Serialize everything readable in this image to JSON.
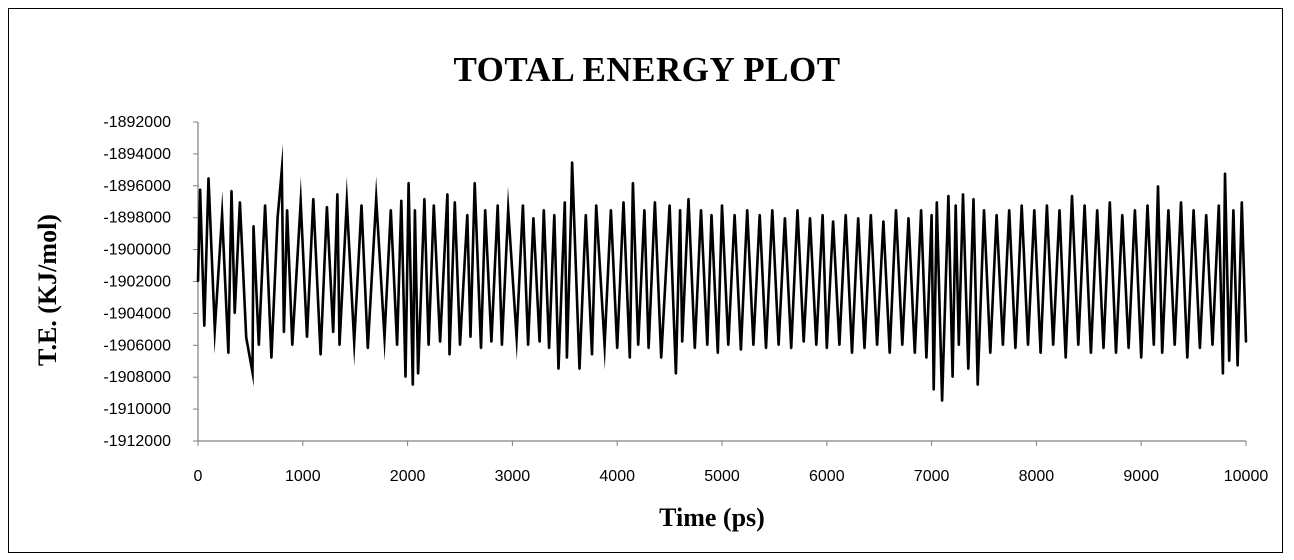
{
  "chart_data": {
    "type": "line",
    "title": "TOTAL ENERGY PLOT",
    "xlabel": "Time (ps)",
    "ylabel": "T.E. (KJ/mol)",
    "xlim": [
      0,
      10000
    ],
    "ylim": [
      -1912000,
      -1892000
    ],
    "x_ticks": [
      0,
      1000,
      2000,
      3000,
      4000,
      5000,
      6000,
      7000,
      8000,
      9000,
      10000
    ],
    "y_ticks": [
      -1892000,
      -1894000,
      -1896000,
      -1898000,
      -1900000,
      -1902000,
      -1904000,
      -1906000,
      -1908000,
      -1910000,
      -1912000
    ],
    "x_tick_labels": [
      "0",
      "1000",
      "2000",
      "3000",
      "4000",
      "5000",
      "6000",
      "7000",
      "8000",
      "9000",
      "10000"
    ],
    "y_tick_labels": [
      "-1892000",
      "-1894000",
      "-1896000",
      "-1898000",
      "-1900000",
      "-1902000",
      "-1904000",
      "-1906000",
      "-1908000",
      "-1910000",
      "-1912000"
    ],
    "grid": false,
    "legend": "none",
    "series": [
      {
        "color": "#000000",
        "x": [
          0,
          20,
          60,
          100,
          160,
          230,
          290,
          320,
          350,
          400,
          460,
          520,
          530,
          580,
          640,
          700,
          760,
          800,
          820,
          850,
          900,
          980,
          1040,
          1100,
          1170,
          1230,
          1290,
          1330,
          1350,
          1420,
          1490,
          1560,
          1620,
          1700,
          1780,
          1840,
          1900,
          1940,
          1980,
          2010,
          2050,
          2070,
          2100,
          2160,
          2200,
          2250,
          2310,
          2380,
          2400,
          2450,
          2500,
          2570,
          2600,
          2640,
          2700,
          2740,
          2800,
          2860,
          2900,
          2960,
          3040,
          3100,
          3150,
          3200,
          3260,
          3300,
          3350,
          3400,
          3440,
          3500,
          3520,
          3560,
          3570,
          3640,
          3700,
          3760,
          3800,
          3880,
          3940,
          4000,
          4060,
          4120,
          4150,
          4200,
          4260,
          4300,
          4360,
          4420,
          4500,
          4560,
          4600,
          4620,
          4680,
          4740,
          4800,
          4860,
          4900,
          4960,
          5000,
          5060,
          5120,
          5180,
          5240,
          5300,
          5360,
          5420,
          5480,
          5540,
          5600,
          5660,
          5720,
          5780,
          5840,
          5900,
          5960,
          6000,
          6060,
          6120,
          6180,
          6240,
          6300,
          6360,
          6420,
          6480,
          6540,
          6600,
          6660,
          6720,
          6780,
          6840,
          6900,
          6950,
          7000,
          7020,
          7050,
          7100,
          7160,
          7200,
          7230,
          7260,
          7300,
          7350,
          7400,
          7440,
          7500,
          7560,
          7620,
          7680,
          7740,
          7800,
          7860,
          7920,
          7980,
          8040,
          8100,
          8160,
          8220,
          8280,
          8340,
          8400,
          8460,
          8520,
          8580,
          8640,
          8700,
          8760,
          8820,
          8880,
          8940,
          9000,
          9060,
          9120,
          9160,
          9200,
          9260,
          9320,
          9380,
          9440,
          9500,
          9560,
          9620,
          9680,
          9740,
          9780,
          9800,
          9840,
          9880,
          9920,
          9960,
          10000
        ],
        "y": [
          -1902000,
          -1896200,
          -1904800,
          -1895500,
          -1905000,
          -1897800,
          -1906500,
          -1896300,
          -1904000,
          -1897000,
          -1905500,
          -1907700,
          -1898500,
          -1906000,
          -1897200,
          -1906800,
          -1898000,
          -1895000,
          -1905200,
          -1897500,
          -1906000,
          -1897000,
          -1905500,
          -1896800,
          -1906600,
          -1897300,
          -1905200,
          -1896500,
          -1906000,
          -1897000,
          -1905800,
          -1897200,
          -1906200,
          -1896800,
          -1905500,
          -1897500,
          -1906000,
          -1896900,
          -1908000,
          -1895800,
          -1908500,
          -1897500,
          -1907800,
          -1896800,
          -1906000,
          -1897200,
          -1905800,
          -1896500,
          -1906600,
          -1897000,
          -1906000,
          -1897800,
          -1905500,
          -1895800,
          -1906200,
          -1897500,
          -1905800,
          -1897200,
          -1906000,
          -1897500,
          -1905500,
          -1897200,
          -1906000,
          -1898000,
          -1905800,
          -1897500,
          -1906200,
          -1897800,
          -1907500,
          -1897000,
          -1906800,
          -1897500,
          -1894500,
          -1907500,
          -1897800,
          -1906600,
          -1897200,
          -1906000,
          -1897500,
          -1906200,
          -1897000,
          -1906800,
          -1895800,
          -1906000,
          -1897500,
          -1906200,
          -1897000,
          -1906800,
          -1897200,
          -1907800,
          -1897500,
          -1905800,
          -1896800,
          -1906200,
          -1897500,
          -1906000,
          -1897800,
          -1906500,
          -1897200,
          -1906000,
          -1897800,
          -1906300,
          -1897500,
          -1906000,
          -1897800,
          -1906200,
          -1897500,
          -1906000,
          -1898000,
          -1906200,
          -1897500,
          -1905800,
          -1898000,
          -1906000,
          -1897800,
          -1906200,
          -1898200,
          -1906000,
          -1897800,
          -1906500,
          -1898000,
          -1906200,
          -1897800,
          -1906000,
          -1898200,
          -1906500,
          -1897500,
          -1906000,
          -1898000,
          -1906500,
          -1897500,
          -1906800,
          -1897800,
          -1908800,
          -1897000,
          -1909500,
          -1896600,
          -1908000,
          -1897200,
          -1906000,
          -1896500,
          -1907500,
          -1896800,
          -1908500,
          -1897500,
          -1906500,
          -1897800,
          -1906000,
          -1897500,
          -1906200,
          -1897200,
          -1906000,
          -1897500,
          -1906500,
          -1897200,
          -1906000,
          -1897500,
          -1906800,
          -1896600,
          -1906000,
          -1897200,
          -1906500,
          -1897500,
          -1906200,
          -1897000,
          -1906500,
          -1897800,
          -1906200,
          -1897500,
          -1906800,
          -1897200,
          -1906000,
          -1896000,
          -1906500,
          -1897500,
          -1906000,
          -1897000,
          -1906800,
          -1897500,
          -1906200,
          -1897800,
          -1906000,
          -1897200,
          -1907800,
          -1895200,
          -1907000,
          -1897500,
          -1907300,
          -1897000,
          -1905800
        ]
      }
    ]
  }
}
